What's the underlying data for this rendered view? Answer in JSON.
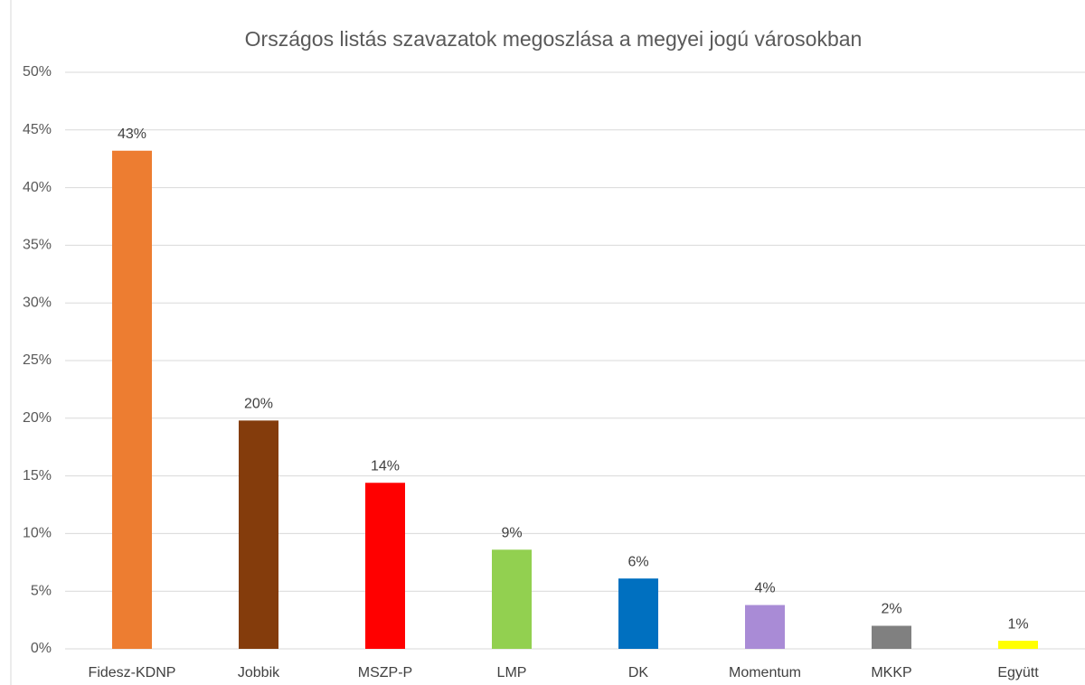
{
  "chart_data": {
    "type": "bar",
    "title": "Országos listás szavazatok megoszlása a megyei jogú városokban",
    "categories": [
      "Fidesz-KDNP",
      "Jobbik",
      "MSZP-P",
      "LMP",
      "DK",
      "Momentum",
      "MKKP",
      "Együtt"
    ],
    "values": [
      43.2,
      19.8,
      14.4,
      8.6,
      6.1,
      3.8,
      2.0,
      0.7
    ],
    "value_labels": [
      "43%",
      "20%",
      "14%",
      "9%",
      "6%",
      "4%",
      "2%",
      "1%"
    ],
    "colors": [
      "#ed7d31",
      "#843c0c",
      "#ff0000",
      "#92d050",
      "#0070c0",
      "#a98bd6",
      "#808080",
      "#ffff00"
    ],
    "ylim": [
      0,
      50
    ],
    "yticks": [
      {
        "value": 0,
        "label": "0%"
      },
      {
        "value": 5,
        "label": "5%"
      },
      {
        "value": 10,
        "label": "10%"
      },
      {
        "value": 15,
        "label": "15%"
      },
      {
        "value": 20,
        "label": "20%"
      },
      {
        "value": 25,
        "label": "25%"
      },
      {
        "value": 30,
        "label": "30%"
      },
      {
        "value": 35,
        "label": "35%"
      },
      {
        "value": 40,
        "label": "40%"
      },
      {
        "value": 45,
        "label": "45%"
      },
      {
        "value": 50,
        "label": "50%"
      }
    ],
    "grid": true
  }
}
